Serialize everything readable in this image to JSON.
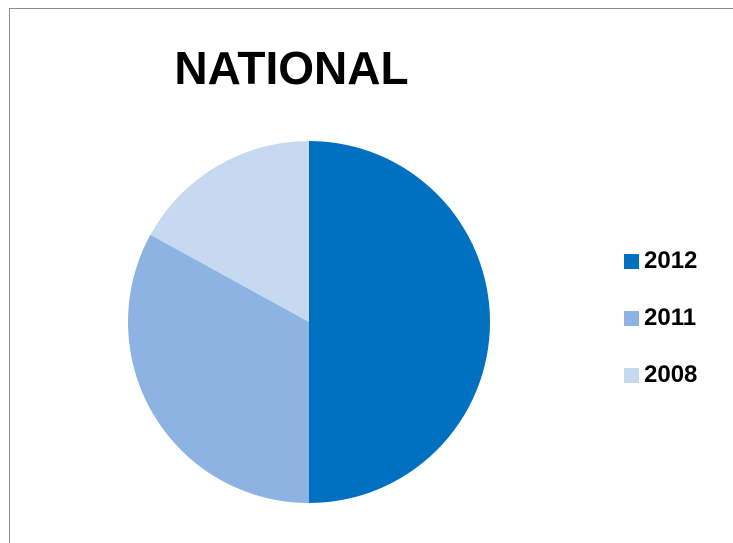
{
  "chart_data": {
    "type": "pie",
    "title": "NATIONAL",
    "categories": [
      "2012",
      "2011",
      "2008"
    ],
    "values": [
      50,
      33,
      17
    ],
    "colors": [
      "#0070c0",
      "#8db3e2",
      "#c6d9f1"
    ],
    "legend_position": "right",
    "start_angle": "12 o'clock",
    "direction": "clockwise"
  }
}
